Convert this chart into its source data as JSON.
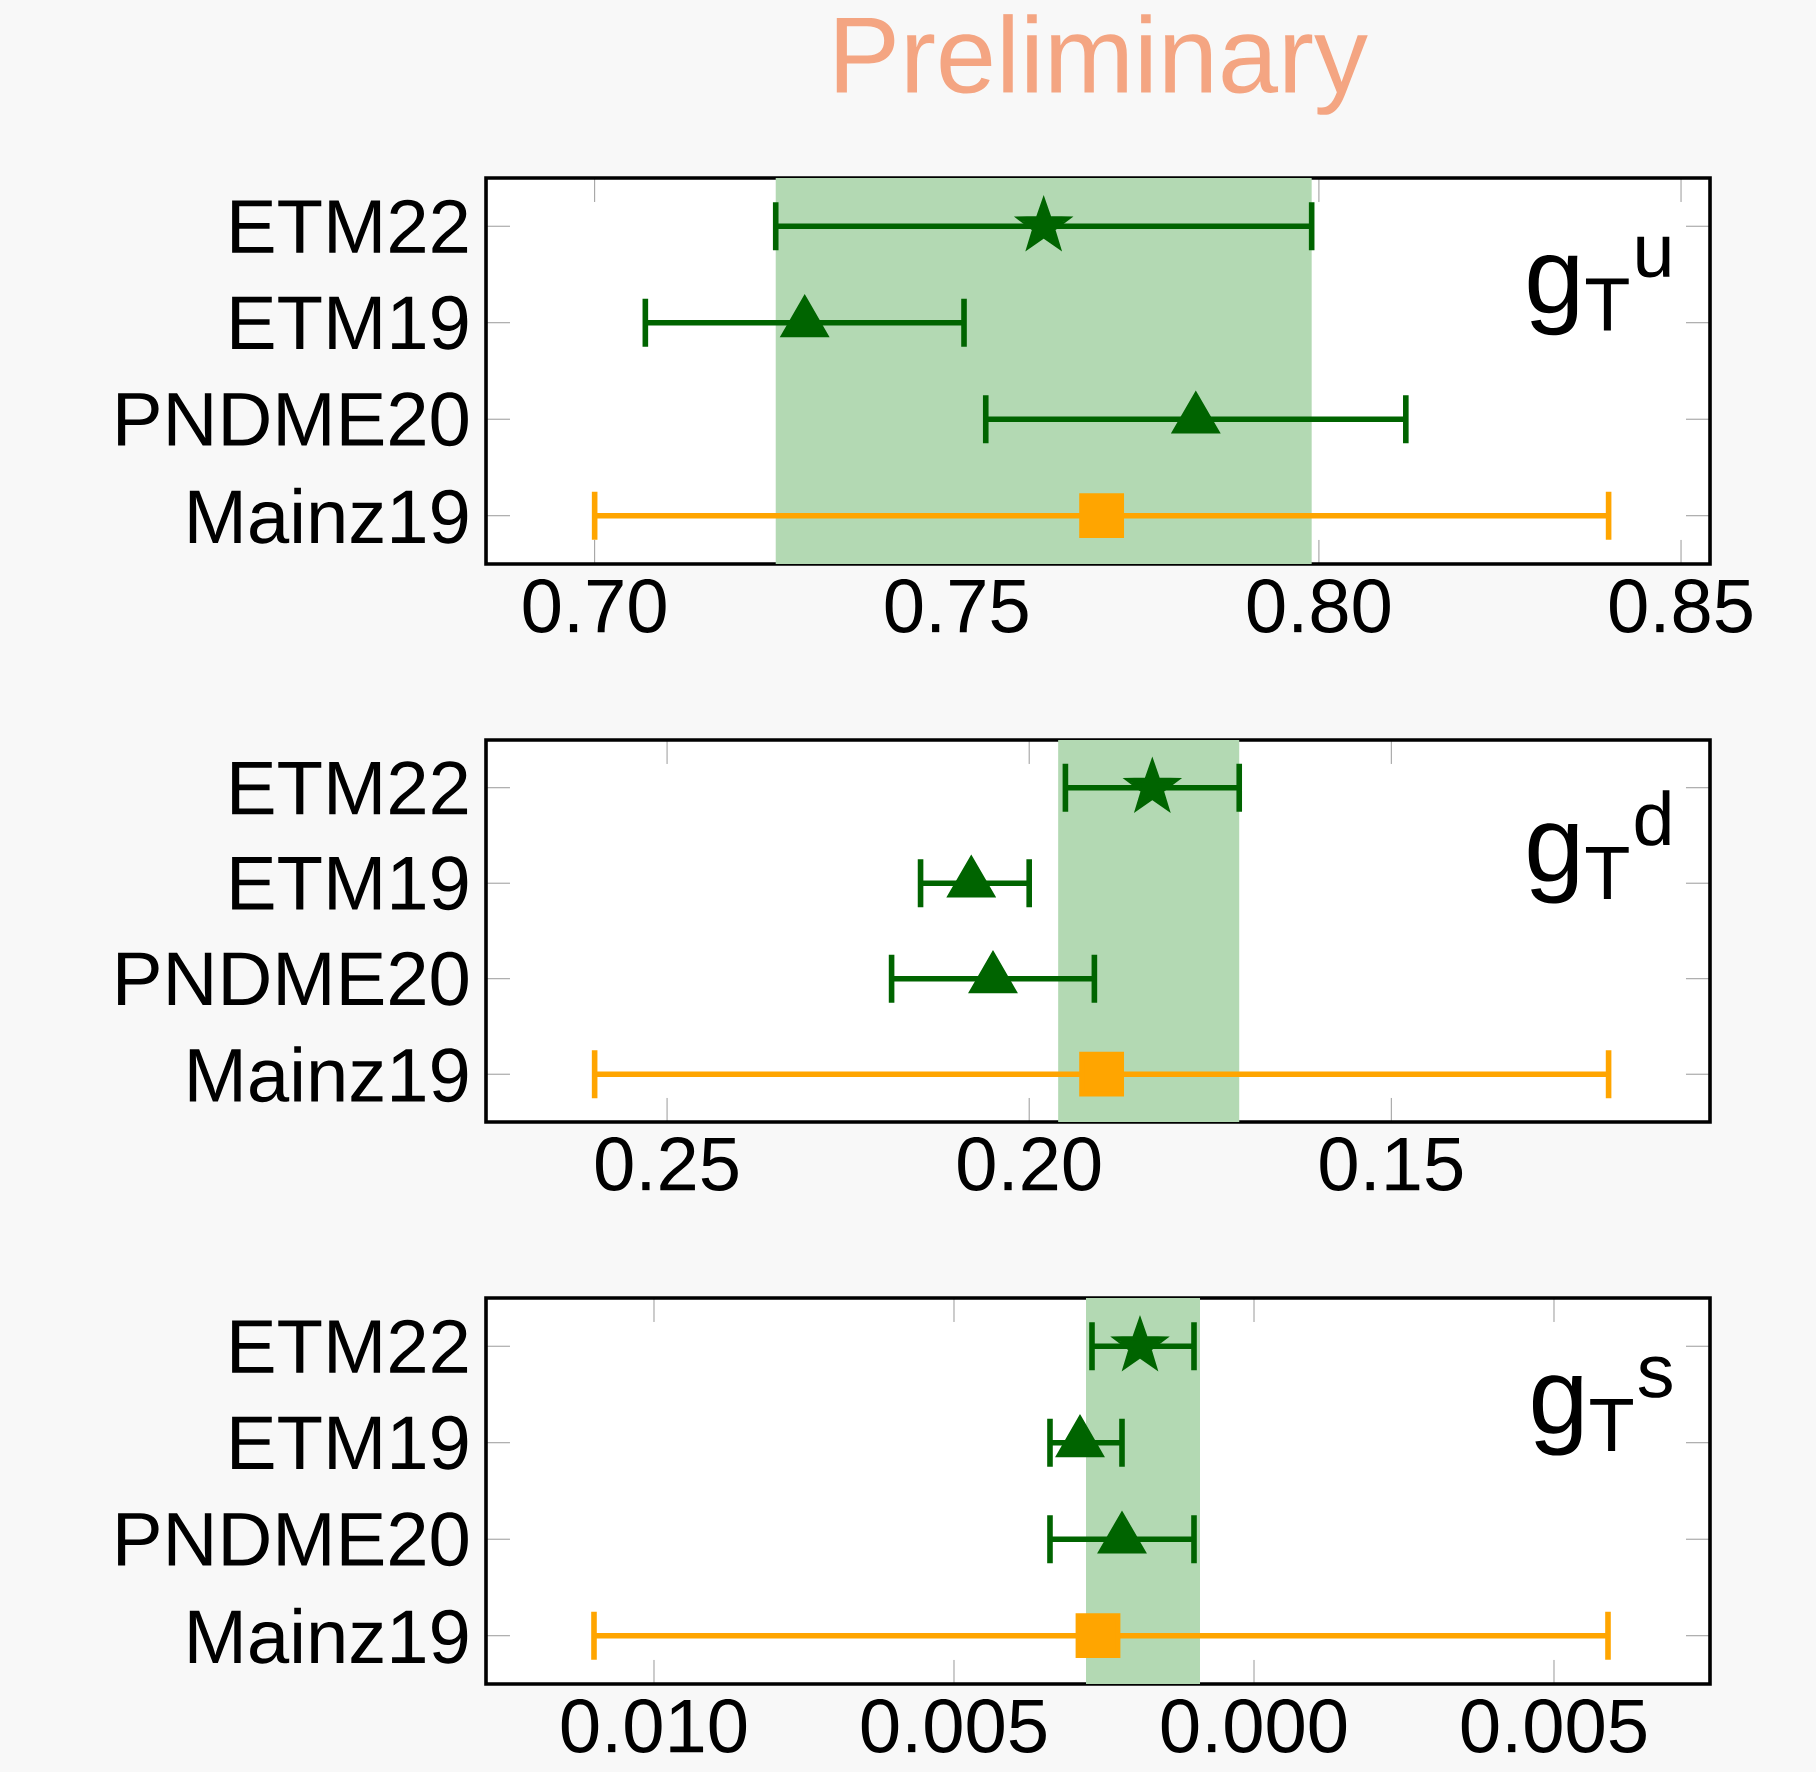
{
  "chart_data": [
    {
      "type": "scatter",
      "title": "Preliminary",
      "orientation": "horizontal",
      "categories": [
        "ETM22",
        "ETM19",
        "PNDME20",
        "Mainz19"
      ],
      "series": [
        {
          "color": "#006400",
          "marker": "star",
          "values": [
            0.762,
            null,
            null,
            null
          ],
          "errors": [
            [
              0.725,
              0.799
            ],
            null,
            null,
            null
          ]
        },
        {
          "color": "#006400",
          "marker": "triangle",
          "values": [
            null,
            0.729,
            null,
            null
          ],
          "errors": [
            null,
            [
              0.707,
              0.751
            ],
            null,
            null
          ]
        },
        {
          "color": "#006400",
          "marker": "triangle",
          "values": [
            null,
            null,
            0.783,
            null
          ],
          "errors": [
            null,
            null,
            [
              0.754,
              0.812
            ],
            null
          ]
        },
        {
          "color": "#ffa500",
          "marker": "square",
          "values": [
            null,
            null,
            null,
            0.77
          ],
          "errors": [
            null,
            null,
            null,
            [
              0.7,
              0.84
            ]
          ]
        }
      ],
      "xlim": [
        0.685,
        0.854
      ],
      "xticks": [
        {
          "value": 0.7,
          "label": "0.70"
        },
        {
          "value": 0.75,
          "label": "0.75"
        },
        {
          "value": 0.8,
          "label": "0.80"
        },
        {
          "value": 0.85,
          "label": "0.85"
        }
      ],
      "bands": [
        {
          "axis": "x",
          "from": 0.725,
          "to": 0.799,
          "color": "#b3d9b3"
        }
      ],
      "annotations": [
        "g$_{T}$$^{u}$"
      ]
    },
    {
      "type": "scatter",
      "orientation": "horizontal",
      "categories": [
        "ETM22",
        "ETM19",
        "PNDME20",
        "Mainz19"
      ],
      "series": [
        {
          "color": "#006400",
          "marker": "star",
          "values": [
            0.183,
            null,
            null,
            null
          ],
          "errors": [
            [
              0.171,
              0.195
            ],
            null,
            null,
            null
          ]
        },
        {
          "color": "#006400",
          "marker": "triangle",
          "values": [
            null,
            0.208,
            null,
            null
          ],
          "errors": [
            null,
            [
              0.2,
              0.215
            ],
            null,
            null
          ]
        },
        {
          "color": "#006400",
          "marker": "triangle",
          "values": [
            null,
            null,
            0.205,
            null
          ],
          "errors": [
            null,
            null,
            [
              0.191,
              0.219
            ],
            null
          ]
        },
        {
          "color": "#ffa500",
          "marker": "square",
          "values": [
            null,
            null,
            null,
            0.19
          ],
          "errors": [
            null,
            null,
            null,
            [
              0.12,
              0.26
            ]
          ]
        }
      ],
      "xlim": [
        0.275,
        0.106
      ],
      "xticks": [
        {
          "value": 0.25,
          "label": "0.25"
        },
        {
          "value": 0.2,
          "label": "0.20"
        },
        {
          "value": 0.15,
          "label": "0.15"
        }
      ],
      "bands": [
        {
          "axis": "x",
          "from": 0.196,
          "to": 0.171,
          "color": "#b3d9b3"
        }
      ],
      "annotations": [
        "g$_{T}$$^{d}$"
      ]
    },
    {
      "type": "scatter",
      "orientation": "horizontal",
      "categories": [
        "ETM22",
        "ETM19",
        "PNDME20",
        "Mainz19"
      ],
      "series": [
        {
          "color": "#006400",
          "marker": "star",
          "values": [
            0.0019,
            null,
            null,
            null
          ],
          "errors": [
            [
              0.001,
              0.0027
            ],
            null,
            null,
            null
          ]
        },
        {
          "color": "#006400",
          "marker": "triangle",
          "values": [
            null,
            0.0029,
            null,
            null
          ],
          "errors": [
            null,
            [
              0.0022,
              0.0034
            ],
            null,
            null
          ]
        },
        {
          "color": "#006400",
          "marker": "triangle",
          "values": [
            null,
            null,
            0.0022,
            null
          ],
          "errors": [
            null,
            null,
            [
              0.001,
              0.0034
            ],
            null
          ]
        },
        {
          "color": "#ffa500",
          "marker": "square",
          "values": [
            null,
            null,
            null,
            0.0026
          ],
          "errors": [
            null,
            null,
            null,
            [
              -0.0059,
              0.011
            ]
          ]
        }
      ],
      "xlim": [
        0.0128,
        -0.0076
      ],
      "xticks": [
        {
          "value": 0.01,
          "label": "0.010"
        },
        {
          "value": 0.005,
          "label": "0.005"
        },
        {
          "value": 0.0,
          "label": "0.000"
        },
        {
          "value": -0.005,
          "label": "0.005"
        }
      ],
      "bands": [
        {
          "axis": "x",
          "from": 0.0028,
          "to": 0.0009,
          "color": "#b3d9b3"
        }
      ],
      "annotations": [
        "g$_{T}$$^{s}$"
      ]
    }
  ]
}
